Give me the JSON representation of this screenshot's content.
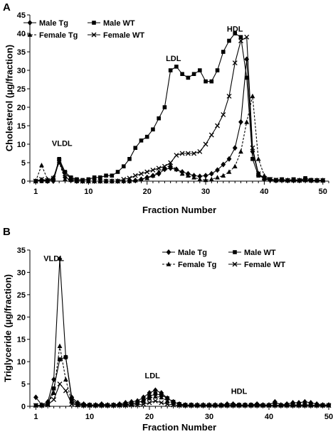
{
  "chart_data": [
    {
      "panel": "A",
      "type": "line",
      "xlabel": "Fraction Number",
      "ylabel": "Cholesterol (µg/fraction)",
      "xlim": [
        0,
        51
      ],
      "ylim": [
        0,
        45
      ],
      "xticks": [
        "1",
        "10",
        "20",
        "30",
        "40",
        "50"
      ],
      "yticks": [
        "0",
        "5",
        "10",
        "15",
        "20",
        "25",
        "30",
        "35",
        "40",
        "45"
      ],
      "legend_placement": "top-left",
      "annotations": [
        {
          "text": "VLDL",
          "x": 5.5,
          "y": 9.5
        },
        {
          "text": "LDL",
          "x": 24.5,
          "y": 32.5
        },
        {
          "text": "HDL",
          "x": 35,
          "y": 40.5
        }
      ],
      "x": [
        1,
        2,
        3,
        4,
        5,
        6,
        7,
        8,
        9,
        10,
        11,
        12,
        13,
        14,
        15,
        16,
        17,
        18,
        19,
        20,
        21,
        22,
        23,
        24,
        25,
        26,
        27,
        28,
        29,
        30,
        31,
        32,
        33,
        34,
        35,
        36,
        37,
        38,
        39,
        40,
        41,
        42,
        43,
        44,
        45,
        46,
        47,
        48,
        49,
        50
      ],
      "series": [
        {
          "name": "Male Tg",
          "marker": "diamond",
          "dash": "solid",
          "values": [
            0,
            0.3,
            0,
            0,
            5.5,
            1,
            0.3,
            0,
            0,
            0,
            0,
            0,
            0,
            0,
            0,
            0,
            0,
            0.2,
            0.5,
            1,
            1.5,
            2,
            3.2,
            3.5,
            3.2,
            2.5,
            2,
            1.5,
            1.3,
            1.5,
            2,
            3,
            4.5,
            6,
            9,
            16,
            33,
            8,
            2,
            0.5,
            0.3,
            0.2,
            0.3,
            0.2,
            0.2,
            0.2,
            0.3,
            0.2,
            0.2,
            0.2
          ]
        },
        {
          "name": "Male WT",
          "marker": "square",
          "dash": "solid",
          "values": [
            0,
            0,
            0,
            0.5,
            6,
            2.5,
            1,
            0.5,
            0.3,
            0.5,
            1,
            1,
            1.5,
            1.5,
            2.5,
            4,
            6,
            9,
            11,
            12,
            14,
            17,
            20,
            30,
            31,
            29,
            28,
            29,
            30,
            27,
            27,
            30,
            35,
            38,
            40,
            39,
            28,
            6,
            1.5,
            0.8,
            0.5,
            0.3,
            0.5,
            0.2,
            0.5,
            0.2,
            0.8,
            0.3,
            0.2,
            0.2
          ]
        },
        {
          "name": "Female Tg",
          "marker": "triangle",
          "dash": "dashed",
          "values": [
            0,
            4.3,
            0.5,
            1,
            5,
            0.5,
            0.3,
            0,
            0,
            0,
            0,
            0,
            0,
            0,
            0,
            0,
            0,
            0.2,
            0.5,
            0.8,
            1.5,
            2.5,
            3.5,
            4.3,
            3.2,
            2,
            1.5,
            1,
            0.5,
            0.3,
            0.5,
            1,
            1.5,
            2.5,
            4,
            8,
            16,
            23,
            6,
            1.5,
            0.5,
            0.2,
            0.3,
            0.3,
            0.2,
            0.2,
            0.3,
            0.2,
            0.2,
            0.2
          ]
        },
        {
          "name": "Female WT",
          "marker": "x",
          "dash": "solid",
          "values": [
            0,
            0.5,
            0.2,
            0.8,
            5.5,
            2,
            0.8,
            0.2,
            0,
            0,
            0,
            0,
            0,
            0,
            0,
            0.5,
            0.8,
            1.5,
            2,
            2.5,
            3,
            3.5,
            4,
            5,
            7,
            7.5,
            7.5,
            7.5,
            8,
            10,
            12.5,
            15,
            18,
            23,
            32,
            38,
            39,
            9,
            2,
            0.8,
            0.5,
            0.3,
            0.3,
            0.2,
            0.3,
            0.2,
            0.3,
            0.2,
            0.2,
            0.2
          ]
        }
      ]
    },
    {
      "panel": "B",
      "type": "line",
      "xlabel": "Fraction Number",
      "ylabel": "Triglyceride (µg/fraction)",
      "xlim": [
        0,
        50
      ],
      "ylim": [
        0,
        35
      ],
      "xticks": [
        "1",
        "10",
        "20",
        "30",
        "40",
        "50"
      ],
      "yticks": [
        "0",
        "5",
        "10",
        "15",
        "20",
        "25",
        "30",
        "35"
      ],
      "legend_placement": "top-right",
      "annotations": [
        {
          "text": "VLDL",
          "x": 4,
          "y": 32.5
        },
        {
          "text": "LDL",
          "x": 20.5,
          "y": 6.3
        },
        {
          "text": "HDL",
          "x": 35,
          "y": 2.8
        }
      ],
      "x": [
        1,
        2,
        3,
        4,
        5,
        6,
        7,
        8,
        9,
        10,
        11,
        12,
        13,
        14,
        15,
        16,
        17,
        18,
        19,
        20,
        21,
        22,
        23,
        24,
        25,
        26,
        27,
        28,
        29,
        30,
        31,
        32,
        33,
        34,
        35,
        36,
        37,
        38,
        39,
        40,
        41,
        42,
        43,
        44,
        45,
        46,
        47,
        48,
        49,
        50
      ],
      "series": [
        {
          "name": "Male Tg",
          "marker": "diamond",
          "dash": "solid",
          "values": [
            2,
            0.3,
            1,
            6,
            33,
            11,
            2,
            0.8,
            0.5,
            0.3,
            0.3,
            0.5,
            0.3,
            0.3,
            0.5,
            0.8,
            1,
            1.2,
            2,
            3,
            3.6,
            3,
            1.8,
            1,
            0.5,
            0.3,
            0.3,
            0.3,
            0.3,
            0.3,
            0.3,
            0.3,
            0.5,
            0.5,
            0.3,
            0.3,
            0.3,
            0.5,
            0.3,
            0.3,
            1,
            0.3,
            0.5,
            0.8,
            0.8,
            1,
            0.8,
            0.5,
            0.3,
            0.3
          ]
        },
        {
          "name": "Male WT",
          "marker": "square",
          "dash": "solid",
          "values": [
            0.2,
            0.2,
            0.5,
            4,
            10.5,
            11,
            1.5,
            0.5,
            0.3,
            0.3,
            0.2,
            0.2,
            0.2,
            0.3,
            0.3,
            0.5,
            0.6,
            0.8,
            1.3,
            2.2,
            2.8,
            2.5,
            1.8,
            1,
            0.5,
            0.3,
            0.3,
            0.2,
            0.2,
            0.2,
            0.2,
            0.2,
            0.2,
            0.3,
            0.3,
            0.3,
            0.3,
            0.3,
            0.2,
            0.2,
            0.3,
            0.2,
            0.3,
            0.3,
            0.3,
            0.3,
            0.3,
            0.2,
            0.2,
            0.2
          ]
        },
        {
          "name": "Female Tg",
          "marker": "triangle",
          "dash": "dashed",
          "values": [
            0.2,
            0.2,
            0.5,
            3,
            13.5,
            6,
            1,
            0.3,
            0.2,
            0.2,
            0.2,
            0.2,
            0.2,
            0.2,
            0.3,
            0.3,
            0.5,
            0.8,
            1.2,
            1.8,
            2.2,
            2,
            1.2,
            0.8,
            0.3,
            0.2,
            0.2,
            0.2,
            0.2,
            0.2,
            0.2,
            0.2,
            0.2,
            0.2,
            0.2,
            0.2,
            0.2,
            0.2,
            0.2,
            0.2,
            0.2,
            0.2,
            0.2,
            0.2,
            0.2,
            0.2,
            0.2,
            0.2,
            0.2,
            0.2
          ]
        },
        {
          "name": "Female WT",
          "marker": "x",
          "dash": "solid",
          "values": [
            0.2,
            0.2,
            0.3,
            1.5,
            5,
            3.5,
            0.5,
            0.3,
            0.2,
            0.2,
            0.2,
            0.2,
            0.2,
            0.2,
            0.2,
            0.2,
            0.3,
            0.3,
            0.5,
            0.8,
            1.2,
            0.8,
            0.5,
            0.3,
            0.2,
            0.2,
            0.2,
            0.2,
            0.2,
            0.2,
            0.2,
            0.2,
            0.2,
            0.2,
            0.2,
            0.2,
            0.2,
            0.2,
            0.2,
            0.2,
            0.2,
            0.2,
            0.2,
            0.2,
            0.2,
            0.2,
            0.2,
            0.2,
            0.2,
            0.2
          ]
        }
      ]
    }
  ]
}
